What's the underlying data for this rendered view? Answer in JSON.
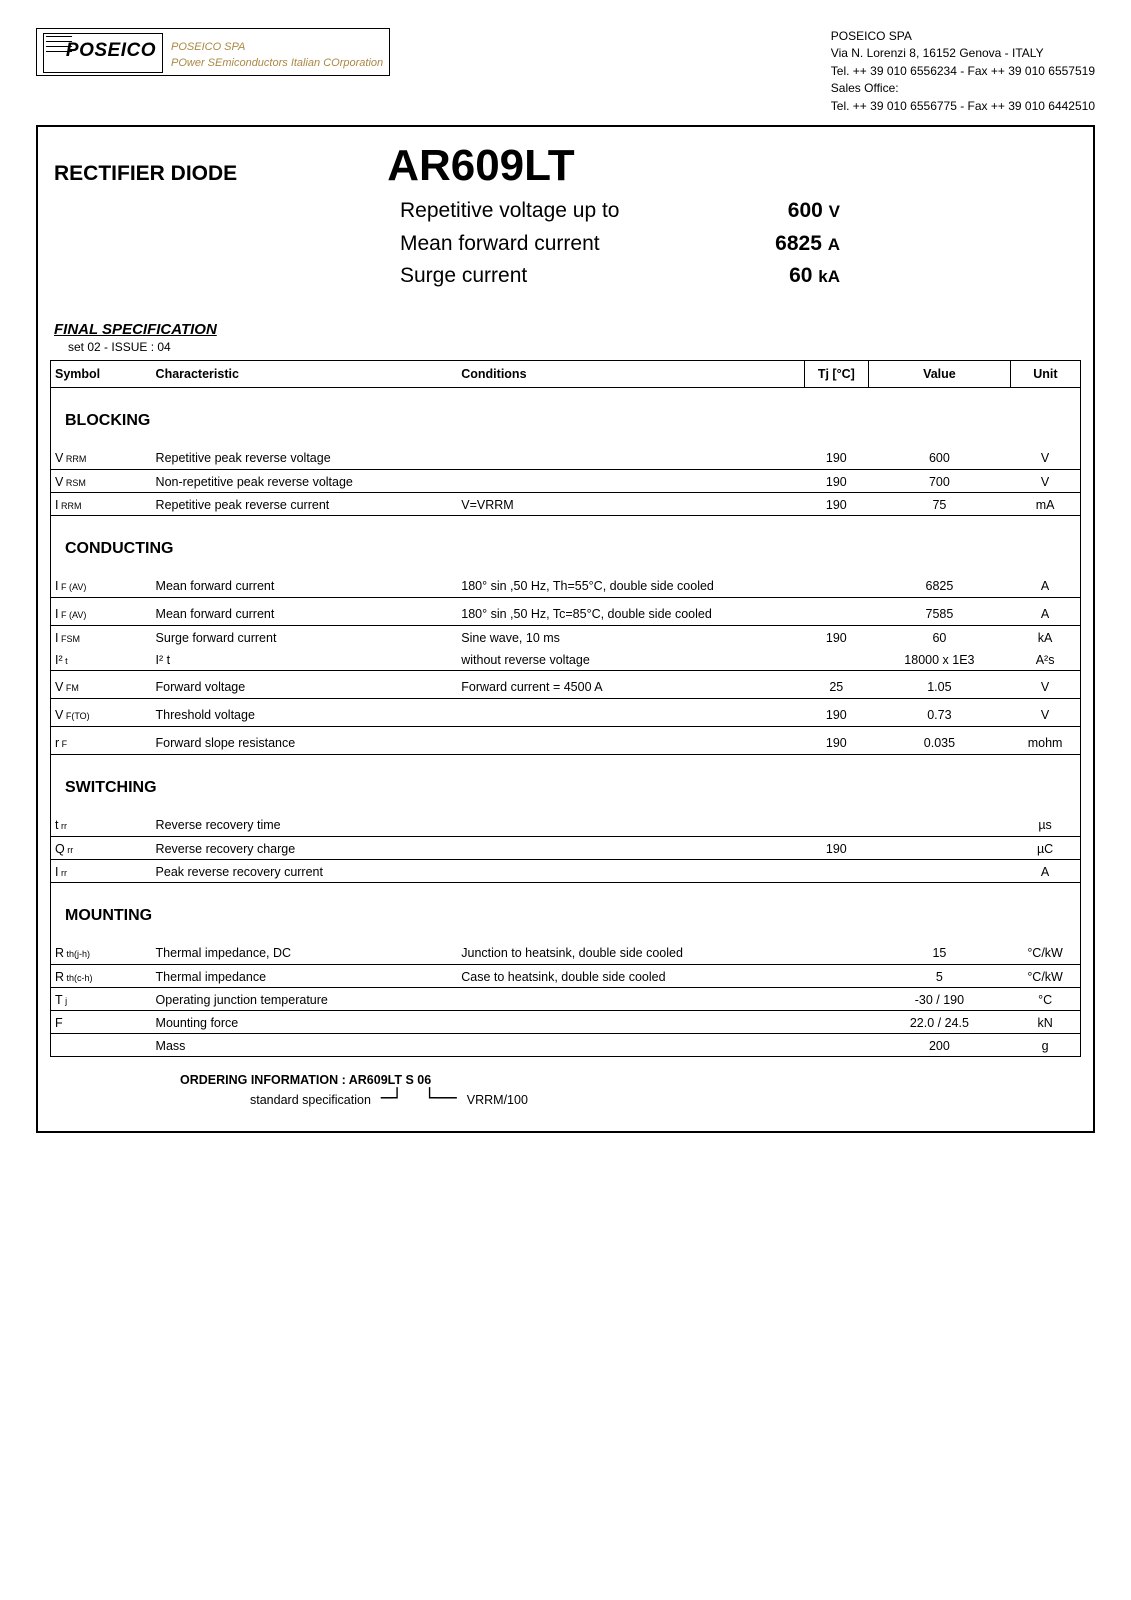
{
  "header": {
    "brand": "POSEICO",
    "brand_sub1": "POSEICO SPA",
    "brand_sub2": "POwer SEmiconductors Italian COrporation",
    "company": [
      "POSEICO SPA",
      "Via N. Lorenzi 8, 16152  Genova - ITALY",
      "Tel. ++ 39 010 6556234 - Fax ++ 39 010 6557519",
      "Sales Office:",
      "Tel. ++ 39 010 6556775 - Fax ++ 39 010 6442510"
    ]
  },
  "title": {
    "doc_type": "RECTIFIER DIODE",
    "part_no": "AR609LT"
  },
  "features": [
    {
      "label": "Repetitive voltage up to",
      "value": "600",
      "unit": "V"
    },
    {
      "label": "Mean forward current",
      "value": "6825",
      "unit": "A"
    },
    {
      "label": "Surge current",
      "value": "60",
      "unit": "kA"
    }
  ],
  "final_spec": "FINAL SPECIFICATION",
  "issue": "set 02 -  ISSUE : 04",
  "columns": {
    "symbol": "Symbol",
    "characteristic": "Characteristic",
    "conditions": "Conditions",
    "tj": "Tj [°C]",
    "value": "Value",
    "unit": "Unit"
  },
  "sections": {
    "blocking": "BLOCKING",
    "conducting": "CONDUCTING",
    "switching": "SWITCHING",
    "mounting": "MOUNTING"
  },
  "blocking": [
    {
      "sym_main": "V",
      "sym_sub": "RRM",
      "char": "Repetitive peak reverse voltage",
      "cond": "",
      "tj": "190",
      "val": "600",
      "unit": "V"
    },
    {
      "sym_main": "V",
      "sym_sub": "RSM",
      "char": "Non-repetitive peak reverse voltage",
      "cond": "",
      "tj": "190",
      "val": "700",
      "unit": "V"
    },
    {
      "sym_main": "I",
      "sym_sub": "RRM",
      "char": "Repetitive peak reverse current",
      "cond": "V=VRRM",
      "tj": "190",
      "val": "75",
      "unit": "mA"
    }
  ],
  "conducting": [
    {
      "sym_main": "I",
      "sym_sub": "F (AV)",
      "char": "Mean forward current",
      "cond": "180° sin ,50 Hz, Th=55°C,  double side cooled",
      "tj": "",
      "val": "6825",
      "unit": "A"
    },
    {
      "sym_main": "I",
      "sym_sub": "F (AV)",
      "char": "Mean forward current",
      "cond": "180° sin ,50 Hz, Tc=85°C, double side cooled",
      "tj": "",
      "val": "7585",
      "unit": "A"
    },
    {
      "sym_main": "I",
      "sym_sub": "FSM",
      "char": "Surge  forward current",
      "cond": "Sine wave, 10 ms",
      "tj": "190",
      "val": "60",
      "unit": "kA"
    },
    {
      "sym_main": "I²",
      "sym_sub": "t",
      "char": "I² t",
      "cond": "without reverse voltage",
      "tj": "",
      "val": "18000  x 1E3",
      "unit": "A²s"
    },
    {
      "sym_main": "V",
      "sym_sub": "FM",
      "char": "Forward  voltage",
      "cond": "Forward current =            4500 A",
      "tj": "25",
      "val": "1.05",
      "unit": "V"
    },
    {
      "sym_main": "V",
      "sym_sub": "F(TO)",
      "char": "Threshold voltage",
      "cond": "",
      "tj": "190",
      "val": "0.73",
      "unit": "V"
    },
    {
      "sym_main": "r",
      "sym_sub": "F",
      "char": "Forward slope resistance",
      "cond": "",
      "tj": "190",
      "val": "0.035",
      "unit": "mohm"
    }
  ],
  "switching": [
    {
      "sym_main": "t",
      "sym_sub": "rr",
      "char": "Reverse recovery time",
      "cond": "",
      "tj": "",
      "val": "",
      "unit": "µs"
    },
    {
      "sym_main": "Q",
      "sym_sub": "rr",
      "char": "Reverse recovery charge",
      "cond": "",
      "tj": "190",
      "val": "",
      "unit": "µC"
    },
    {
      "sym_main": "I",
      "sym_sub": "rr",
      "char": "Peak reverse recovery current",
      "cond": "",
      "tj": "",
      "val": "",
      "unit": "A"
    }
  ],
  "mounting": [
    {
      "sym_main": "R",
      "sym_sub": "th(j-h)",
      "char": "Thermal impedance, DC",
      "cond": "Junction to heatsink, double side cooled",
      "tj": "",
      "val": "15",
      "unit": "°C/kW"
    },
    {
      "sym_main": "R",
      "sym_sub": "th(c-h)",
      "char": "Thermal impedance",
      "cond": "Case to heatsink, double side cooled",
      "tj": "",
      "val": "5",
      "unit": "°C/kW"
    },
    {
      "sym_main": "T",
      "sym_sub": "j",
      "char": "Operating junction temperature",
      "cond": "",
      "tj": "",
      "val": "-30 /    190",
      "unit": "°C"
    },
    {
      "sym_main": "F",
      "sym_sub": "",
      "char": "Mounting force",
      "cond": "",
      "tj": "",
      "val": "22.0     / 24.5",
      "unit": "kN"
    },
    {
      "sym_main": "",
      "sym_sub": "",
      "char": "Mass",
      "cond": "",
      "tj": "",
      "val": "200",
      "unit": "g"
    }
  ],
  "ordering": {
    "title": "ORDERING INFORMATION  : AR609LT S 06",
    "left": "standard specification",
    "right": "VRRM/100"
  }
}
